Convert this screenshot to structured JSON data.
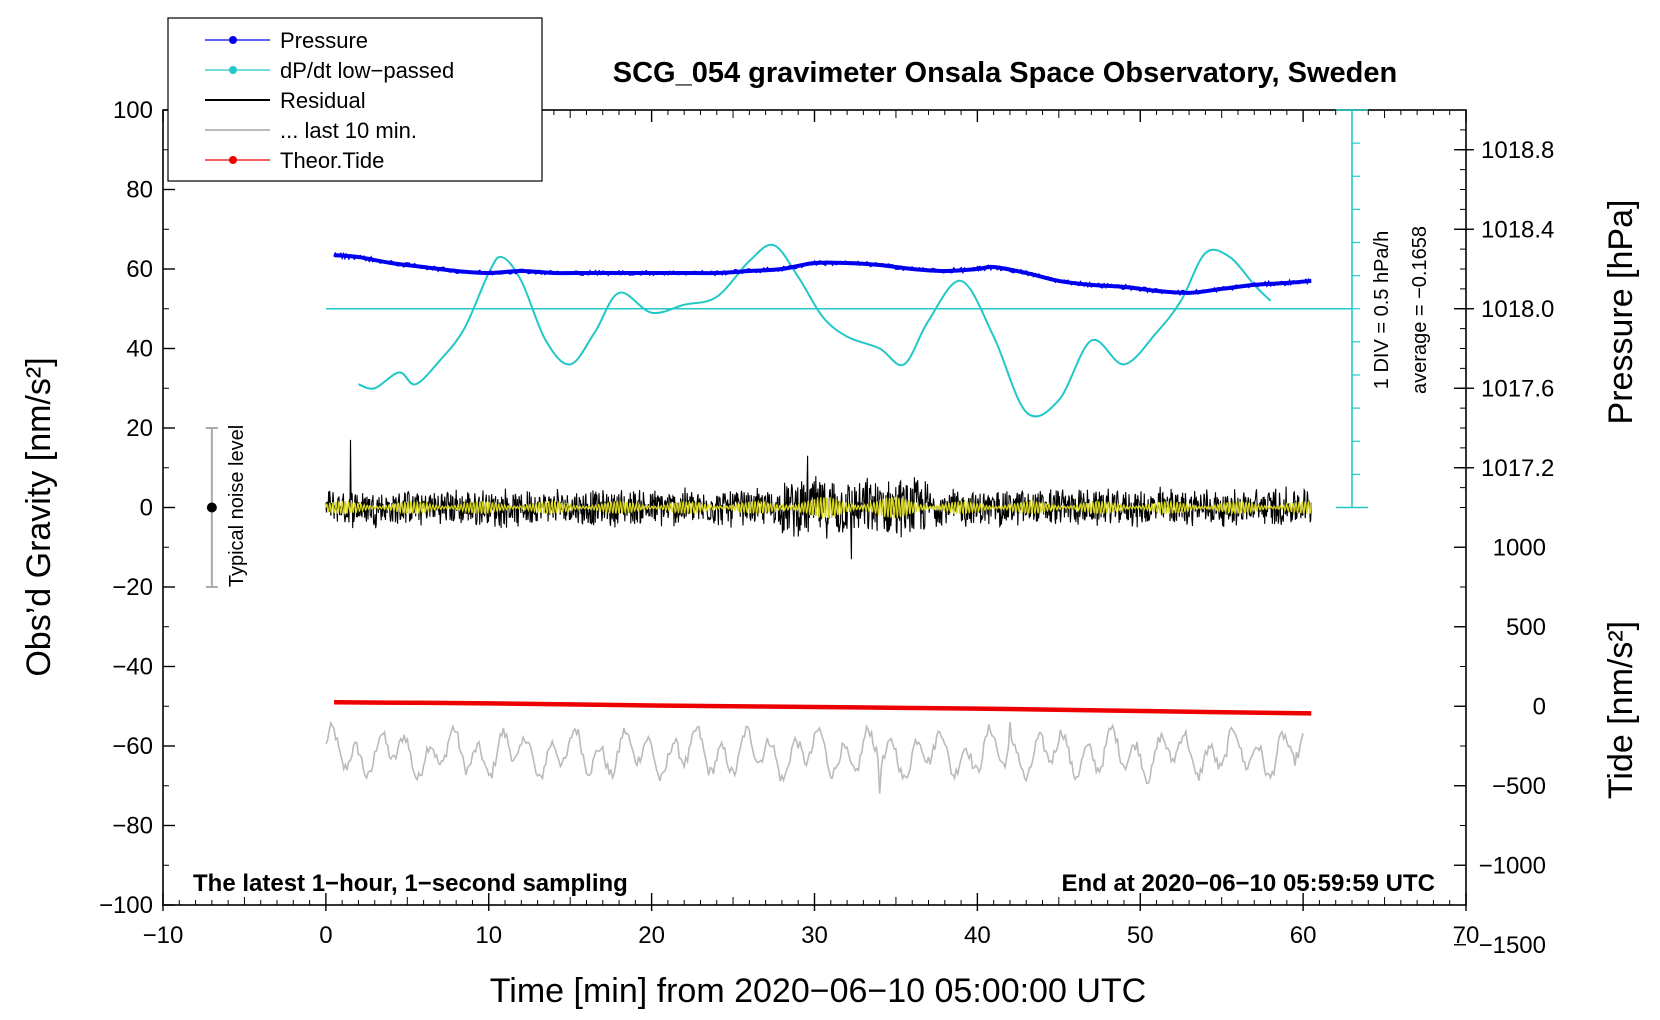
{
  "chart_data": {
    "type": "line",
    "title": "SCG_054 gravimeter Onsala Space Observatory, Sweden",
    "xlabel": "Time [min] from 2020−06−10 05:00:00 UTC",
    "ylabel": "Obs’d Gravity [nm/s²]",
    "ylabel_right_pressure": "Pressure [hPa]",
    "ylabel_right_tide": "Tide [nm/s²]",
    "xlim": [
      -10,
      70
    ],
    "ylim": [
      -100,
      100
    ],
    "x_ticks": [
      -10,
      0,
      10,
      20,
      30,
      40,
      50,
      60,
      70
    ],
    "x_tick_labels": [
      "−10",
      "0",
      "10",
      "20",
      "30",
      "40",
      "50",
      "60",
      "70"
    ],
    "y_ticks": [
      -100,
      -80,
      -60,
      -40,
      -20,
      0,
      20,
      40,
      60,
      80,
      100
    ],
    "y_tick_labels": [
      "−100",
      "−80",
      "−60",
      "−40",
      "−20",
      "0",
      "20",
      "40",
      "60",
      "80",
      "100"
    ],
    "pressure_axis": {
      "ticks": [
        1017.2,
        1017.6,
        1018.0,
        1018.4,
        1018.8
      ],
      "tick_labels": [
        "1017.2",
        "1017.6",
        "1018.0",
        "1018.4",
        "1018.8"
      ],
      "gravity_at_1018_0": 50,
      "gravity_per_hPa": 50
    },
    "tide_axis": {
      "ticks": [
        -1500,
        -1000,
        -500,
        0,
        500,
        1000
      ],
      "tick_labels": [
        "−1500",
        "−1000",
        "−500",
        "0",
        "500",
        "1000"
      ],
      "gravity_at_0": -50,
      "gravity_per_unit": 0.04
    },
    "scale_bar": {
      "label": "1 DIV = 0.5 hPa/h",
      "average_label": "average = −0.1658",
      "x": 63,
      "y_range": [
        0,
        100
      ]
    },
    "noise_bar": {
      "label": "Typical noise level",
      "x": -7,
      "y_range": [
        -20,
        20
      ]
    },
    "notes": {
      "left": "The latest 1−hour, 1−second sampling",
      "right": "End at 2020−06−10 05:59:59 UTC"
    },
    "legend": [
      {
        "label": "Pressure",
        "color": "#0000ee",
        "marker": true
      },
      {
        "label": "dP/dt low−passed",
        "color": "#22c8c8",
        "marker": true
      },
      {
        "label": "Residual",
        "color": "#000000",
        "marker": false
      },
      {
        "label": "... last 10 min.",
        "color": "#bbbbbb",
        "marker": false
      },
      {
        "label": "Theor.Tide",
        "color": "#ee0000",
        "marker": true
      }
    ],
    "series": [
      {
        "name": "Pressure",
        "color": "#0000ee",
        "units": "hPa",
        "x": [
          0.5,
          2,
          4,
          6,
          8,
          10,
          12,
          14,
          16,
          18,
          20,
          22,
          24,
          26,
          28,
          30,
          32,
          34,
          36,
          38,
          40,
          41,
          43,
          45,
          47,
          49,
          51,
          53,
          55,
          57,
          59,
          60.5
        ],
        "values": [
          1018.27,
          1018.26,
          1018.23,
          1018.21,
          1018.19,
          1018.18,
          1018.19,
          1018.18,
          1018.18,
          1018.18,
          1018.18,
          1018.18,
          1018.18,
          1018.19,
          1018.2,
          1018.23,
          1018.23,
          1018.22,
          1018.2,
          1018.19,
          1018.2,
          1018.21,
          1018.18,
          1018.14,
          1018.12,
          1018.11,
          1018.09,
          1018.08,
          1018.1,
          1018.12,
          1018.13,
          1018.14
        ]
      },
      {
        "name": "dP/dt low−passed",
        "color": "#22c8c8",
        "x": [
          2,
          3,
          4.5,
          5.5,
          7,
          8.5,
          10,
          10.8,
          12,
          13.5,
          15,
          16.5,
          18,
          20,
          22,
          24,
          26,
          27.5,
          29,
          30.5,
          32,
          34,
          35.5,
          37,
          39,
          41,
          43,
          45,
          47,
          49,
          51,
          52.5,
          54,
          55.5,
          57,
          58
        ],
        "values": [
          31,
          30,
          34,
          31,
          37,
          45,
          59,
          63,
          57,
          42,
          36,
          44,
          54,
          49,
          51,
          53,
          62,
          66,
          58,
          48,
          43,
          40,
          36,
          47,
          57,
          43,
          24,
          27,
          42,
          36,
          44,
          52,
          64,
          63,
          56,
          52
        ]
      },
      {
        "name": "Theor.Tide",
        "color": "#ee0000",
        "units": "nm/s²",
        "x": [
          0.5,
          10,
          20,
          30,
          40,
          50,
          60.5
        ],
        "values": [
          25,
          18,
          5,
          -5,
          -15,
          -30,
          -45
        ]
      },
      {
        "name": "Residual",
        "color": "#000000",
        "x_range": [
          0,
          60.5
        ],
        "amplitude": 4,
        "peak_values": [
          17,
          13,
          -13
        ]
      },
      {
        "name": "... last 10 min.",
        "color": "#bbbbbb",
        "x_range": [
          0,
          60
        ],
        "baseline": -62,
        "range": [
          -72,
          -54
        ]
      }
    ]
  }
}
